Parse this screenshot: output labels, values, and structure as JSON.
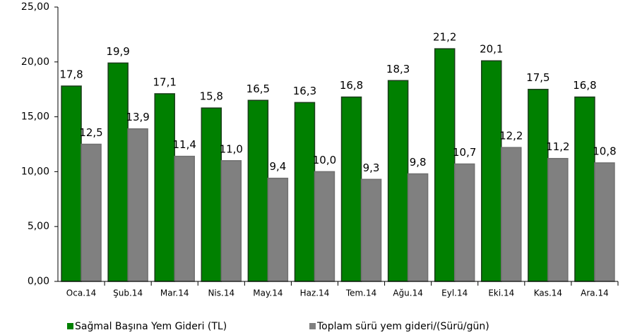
{
  "chart_data": {
    "type": "bar",
    "categories": [
      "Oca.14",
      "Şub.14",
      "Mar.14",
      "Nis.14",
      "May.14",
      "Haz.14",
      "Tem.14",
      "Ağu.14",
      "Eyl.14",
      "Eki.14",
      "Kas.14",
      "Ara.14"
    ],
    "series": [
      {
        "name": "Sağmal Başına Yem Gideri (TL)",
        "color": "#008000",
        "border": "#1a3d1a",
        "values": [
          17.8,
          19.9,
          17.1,
          15.8,
          16.5,
          16.3,
          16.8,
          18.3,
          21.2,
          20.1,
          17.5,
          16.8
        ],
        "value_labels": [
          "17,8",
          "19,9",
          "17,1",
          "15,8",
          "16,5",
          "16,3",
          "16,8",
          "18,3",
          "21,2",
          "20,1",
          "17,5",
          "16,8"
        ]
      },
      {
        "name": "Toplam sürü yem gideri/(Sürü/gün)",
        "color": "#808080",
        "border": "#707070",
        "values": [
          12.5,
          13.9,
          11.4,
          11.0,
          9.4,
          10.0,
          9.3,
          9.8,
          10.7,
          12.2,
          11.2,
          10.8
        ],
        "value_labels": [
          "12,5",
          "13,9",
          "11,4",
          "11,0",
          "9,4",
          "10,0",
          "9,3",
          "9,8",
          "10,7",
          "12,2",
          "11,2",
          "10,8"
        ]
      }
    ],
    "ylim": [
      0,
      25
    ],
    "yticks": [
      {
        "value": 0,
        "label": "0,00"
      },
      {
        "value": 5,
        "label": "5,00"
      },
      {
        "value": 10,
        "label": "10,00"
      },
      {
        "value": 15,
        "label": "15,00"
      },
      {
        "value": 20,
        "label": "20,00"
      },
      {
        "value": 25,
        "label": "25,00"
      }
    ],
    "grid": false,
    "legend": "bottom"
  }
}
